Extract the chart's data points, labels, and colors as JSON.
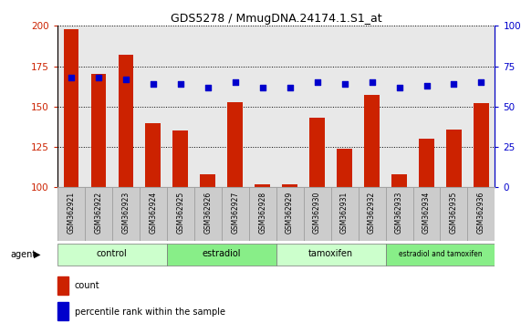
{
  "title": "GDS5278 / MmugDNA.24174.1.S1_at",
  "samples": [
    "GSM362921",
    "GSM362922",
    "GSM362923",
    "GSM362924",
    "GSM362925",
    "GSM362926",
    "GSM362927",
    "GSM362928",
    "GSM362929",
    "GSM362930",
    "GSM362931",
    "GSM362932",
    "GSM362933",
    "GSM362934",
    "GSM362935",
    "GSM362936"
  ],
  "counts": [
    198,
    170,
    182,
    140,
    135,
    108,
    153,
    102,
    102,
    143,
    124,
    157,
    108,
    130,
    136,
    152
  ],
  "percentile_ranks": [
    68,
    68,
    67,
    64,
    64,
    62,
    65,
    62,
    62,
    65,
    64,
    65,
    62,
    63,
    64,
    65
  ],
  "groups": [
    {
      "label": "control",
      "start": 0,
      "end": 4
    },
    {
      "label": "estradiol",
      "start": 4,
      "end": 8
    },
    {
      "label": "tamoxifen",
      "start": 8,
      "end": 12
    },
    {
      "label": "estradiol and tamoxifen",
      "start": 12,
      "end": 16
    }
  ],
  "group_colors": [
    "#ccffcc",
    "#88ee88",
    "#ccffcc",
    "#88ee88"
  ],
  "bar_color": "#cc2200",
  "dot_color": "#0000cc",
  "ylim_left": [
    100,
    200
  ],
  "ylim_right": [
    0,
    100
  ],
  "yticks_left": [
    100,
    125,
    150,
    175,
    200
  ],
  "yticks_right": [
    0,
    25,
    50,
    75,
    100
  ],
  "background_color": "#ffffff",
  "plot_bg_color": "#e8e8e8",
  "xtick_bg_color": "#cccccc",
  "agent_label": "agent",
  "legend_count": "count",
  "legend_percentile": "percentile rank within the sample"
}
